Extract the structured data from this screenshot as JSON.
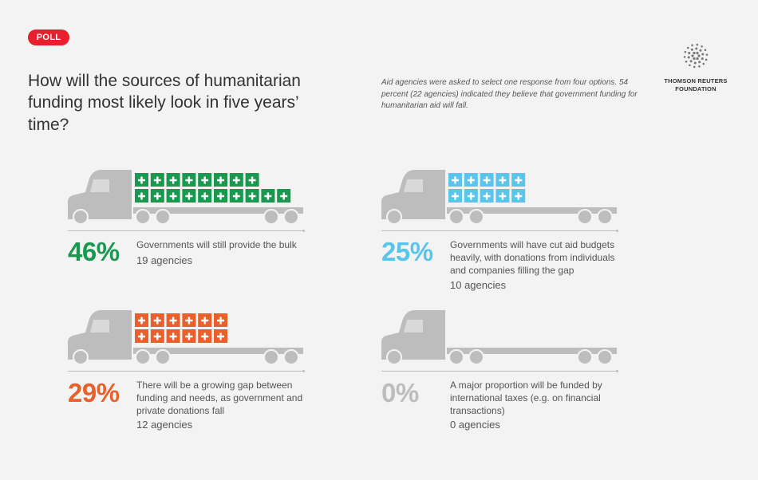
{
  "badge": "POLL",
  "headline": "How will the sources of humanitarian funding most likely look in five years’ time?",
  "note": "Aid agencies were asked to select one response from four options. 54 percent (22 agencies) indicated they believe that government funding for humanitarian aid will fall.",
  "logo": {
    "line1": "THOMSON REUTERS",
    "line2": "FOUNDATION"
  },
  "chart_data": {
    "type": "bar",
    "categories": [
      "Governments will still provide the bulk",
      "Governments will have cut aid budgets heavily, with donations from individuals and companies filling the gap",
      "There will be a growing gap between funding and needs, as government and private donations fall",
      "A major proportion will be funded by international taxes (e.g. on financial transactions)"
    ],
    "values": [
      46,
      25,
      29,
      0
    ],
    "percent_labels": [
      "46%",
      "25%",
      "29%",
      "0%"
    ],
    "agencies": [
      19,
      10,
      12,
      0
    ],
    "agency_labels": [
      "19 agencies",
      "10 agencies",
      "12 agencies",
      "0 agencies"
    ],
    "colors": [
      "#1a9850",
      "#5bc4ea",
      "#e8612c",
      "#bdbdbd"
    ]
  }
}
